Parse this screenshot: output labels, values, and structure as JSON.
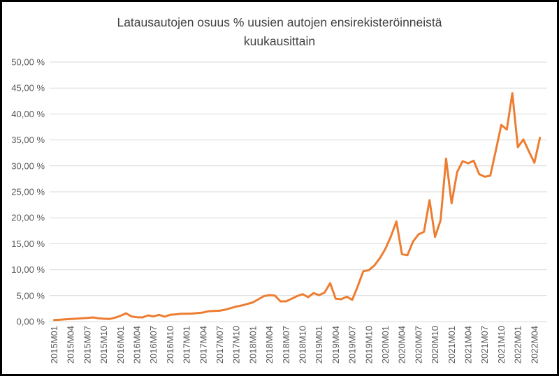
{
  "window": {
    "background_color": "#ffffff",
    "frame_color": "#000000"
  },
  "chart_data": {
    "type": "line",
    "title": "Latausautojen osuus % uusien autojen ensirekisteröinneistä kuukausittain",
    "title_line1": "Latausautojen osuus % uusien autojen ensirekisteröinneistä",
    "title_line2": "kuukausittain",
    "xlabel": "",
    "ylabel": "",
    "ylim": [
      0,
      50
    ],
    "y_tick_step": 5,
    "y_tick_labels": [
      "0,00 %",
      "5,00 %",
      "10,00 %",
      "15,00 %",
      "20,00 %",
      "25,00 %",
      "30,00 %",
      "35,00 %",
      "40,00 %",
      "45,00 %",
      "50,00 %"
    ],
    "x_tick_every": 3,
    "grid": "horizontal",
    "legend": "none",
    "line_color": "#ED7D31",
    "gridline_color": "#D9D9D9",
    "text_color": "#595959",
    "title_color": "#404040",
    "x": [
      "2015M01",
      "2015M02",
      "2015M03",
      "2015M04",
      "2015M05",
      "2015M06",
      "2015M07",
      "2015M08",
      "2015M09",
      "2015M10",
      "2015M11",
      "2015M12",
      "2016M01",
      "2016M02",
      "2016M03",
      "2016M04",
      "2016M05",
      "2016M06",
      "2016M07",
      "2016M08",
      "2016M09",
      "2016M10",
      "2016M11",
      "2016M12",
      "2017M01",
      "2017M02",
      "2017M03",
      "2017M04",
      "2017M05",
      "2017M06",
      "2017M07",
      "2017M08",
      "2017M09",
      "2017M10",
      "2017M11",
      "2017M12",
      "2018M01",
      "2018M02",
      "2018M03",
      "2018M04",
      "2018M05",
      "2018M06",
      "2018M07",
      "2018M08",
      "2018M09",
      "2018M10",
      "2018M11",
      "2018M12",
      "2019M01",
      "2019M02",
      "2019M03",
      "2019M04",
      "2019M05",
      "2019M06",
      "2019M07",
      "2019M08",
      "2019M09",
      "2019M10",
      "2019M11",
      "2019M12",
      "2020M01",
      "2020M02",
      "2020M03",
      "2020M04",
      "2020M05",
      "2020M06",
      "2020M07",
      "2020M08",
      "2020M09",
      "2020M10",
      "2020M11",
      "2020M12",
      "2021M01",
      "2021M02",
      "2021M03",
      "2021M04",
      "2021M05",
      "2021M06",
      "2021M07",
      "2021M08",
      "2021M09",
      "2021M10",
      "2021M11",
      "2021M12",
      "2022M01",
      "2022M02",
      "2022M03",
      "2022M04",
      "2022M05"
    ],
    "series": [
      {
        "name": "Latausautojen osuus %",
        "values": [
          0.3,
          0.35,
          0.45,
          0.5,
          0.55,
          0.65,
          0.7,
          0.8,
          0.65,
          0.55,
          0.5,
          0.75,
          1.1,
          1.6,
          1.0,
          0.85,
          0.8,
          1.2,
          1.0,
          1.3,
          0.95,
          1.3,
          1.4,
          1.5,
          1.5,
          1.55,
          1.65,
          1.75,
          2.0,
          2.05,
          2.1,
          2.3,
          2.6,
          2.9,
          3.1,
          3.4,
          3.7,
          4.3,
          4.9,
          5.1,
          5.0,
          3.9,
          3.9,
          4.4,
          4.9,
          5.3,
          4.7,
          5.5,
          5.1,
          5.6,
          7.4,
          4.4,
          4.3,
          4.8,
          4.2,
          6.8,
          9.7,
          9.9,
          10.8,
          12.2,
          14.0,
          16.4,
          19.3,
          13.0,
          12.8,
          15.4,
          16.8,
          17.3,
          23.4,
          16.3,
          19.5,
          31.4,
          22.8,
          28.8,
          30.9,
          30.5,
          31.0,
          28.4,
          27.9,
          28.1,
          32.9,
          37.9,
          37.0,
          44.0,
          33.6,
          35.1,
          32.8,
          30.6,
          35.4
        ]
      }
    ]
  }
}
